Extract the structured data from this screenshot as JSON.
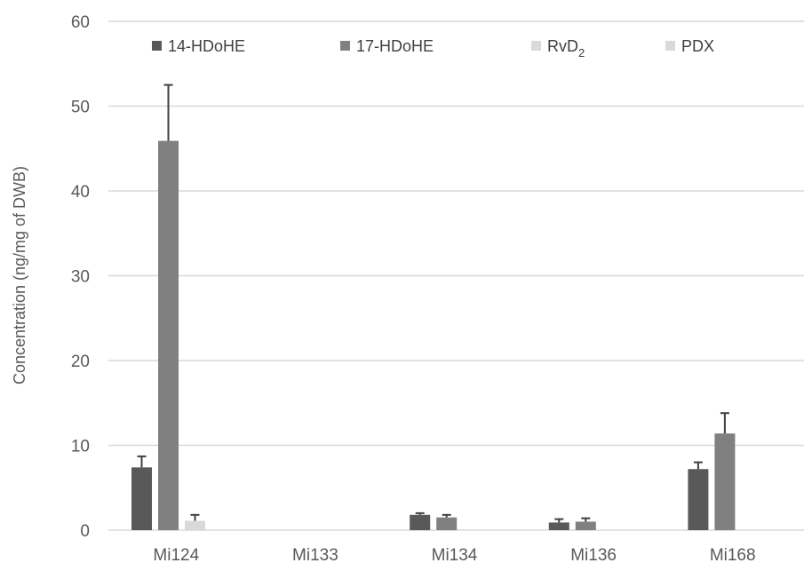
{
  "chart_data": {
    "type": "bar",
    "title": "",
    "xlabel": "",
    "ylabel": "Concentration (ng/mg of DWB)",
    "ylim": [
      0,
      60
    ],
    "yticks": [
      0,
      10,
      20,
      30,
      40,
      50,
      60
    ],
    "grid": true,
    "legend_position": "top",
    "categories": [
      "Mi124",
      "Mi133",
      "Mi134",
      "Mi136",
      "Mi168"
    ],
    "series": [
      {
        "name": "14-HDoHE",
        "name_base": "14-HDoHE",
        "name_sub": "",
        "color": "#595959",
        "values": [
          7.4,
          0,
          1.8,
          0.9,
          7.2
        ],
        "errors": [
          1.3,
          0,
          0.2,
          0.4,
          0.8
        ]
      },
      {
        "name": "17-HDoHE",
        "name_base": "17-HDoHE",
        "name_sub": "",
        "color": "#808080",
        "values": [
          45.9,
          0,
          1.5,
          1.0,
          11.4
        ],
        "errors": [
          6.6,
          0,
          0.3,
          0.4,
          2.4
        ]
      },
      {
        "name": "RvD2",
        "name_base": "RvD",
        "name_sub": "2",
        "color": "#d9d9d9",
        "values": [
          1.1,
          0,
          0,
          0.05,
          0
        ],
        "errors": [
          0.7,
          0,
          0,
          0,
          0
        ]
      },
      {
        "name": "PDX",
        "name_base": "PDX",
        "name_sub": "",
        "color": "#d9d9d9",
        "values": [
          0,
          0,
          0,
          0,
          0.05
        ],
        "errors": [
          0,
          0,
          0,
          0,
          0
        ]
      }
    ]
  }
}
